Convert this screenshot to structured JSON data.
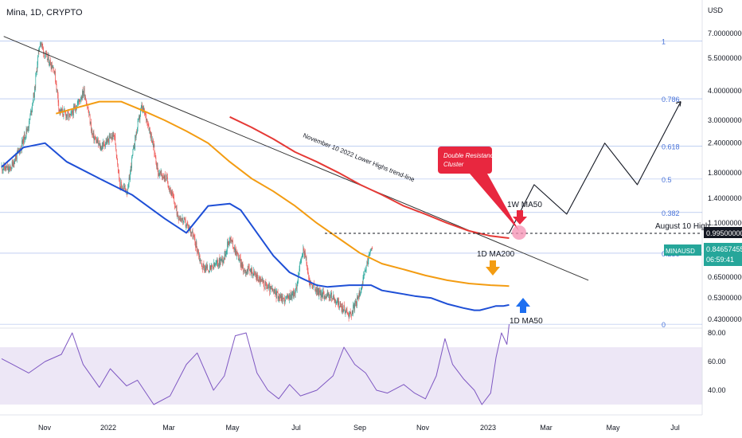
{
  "header": {
    "title": "Mina, 1D, CRYPTO"
  },
  "price_axis": {
    "currency": "USD",
    "ticks": [
      "7.00000000",
      "5.50000000",
      "4.00000000",
      "3.00000000",
      "2.40000000",
      "1.80000000",
      "1.40000000",
      "1.10000000",
      "0.65000000",
      "0.53000000",
      "0.43000000"
    ],
    "ticks_num": [
      7.0,
      5.5,
      4.0,
      3.0,
      2.4,
      1.8,
      1.4,
      1.1,
      0.65,
      0.53,
      0.43
    ]
  },
  "rsi_axis": {
    "ticks": [
      "80.00",
      "60.00",
      "40.00"
    ],
    "ticks_num": [
      80,
      60,
      40
    ]
  },
  "time_axis": {
    "labels": [
      "Nov",
      "2022",
      "Mar",
      "May",
      "Jul",
      "Sep",
      "Nov",
      "2023",
      "Mar",
      "May",
      "Jul"
    ]
  },
  "price_tags": {
    "level_value": "0.99500000",
    "symbol": "MINAUSD",
    "last_price": "0.84657455",
    "countdown": "06:59:41"
  },
  "annotations": {
    "trendline": "November 10 2022 Lower Highs trend-line",
    "callout_line1": "Double Resistance",
    "callout_line2": "Cluster",
    "ma50_1w": "1W MA50",
    "ma200_1d": "1D MA200",
    "ma50_1d": "1D MA50",
    "aug_high": "August 10 High"
  },
  "fib_labels": [
    "1",
    "0.786",
    "0.618",
    "0.5",
    "0.382",
    "0.236",
    "0"
  ],
  "colors": {
    "fib": "#4a74d9",
    "ma50_1d": "#1e4fd6",
    "ma200_1d": "#f39c12",
    "ma50_1w": "#e53935",
    "trend": "#333333",
    "rsi": "#7e57c2",
    "rsi_band": "#ede7f6",
    "candle_up": "#26a69a",
    "candle_down": "#ef5350",
    "last_tag": "#26a69a",
    "level_tag": "#131722",
    "callout": "#e8273f"
  },
  "chart_data": {
    "type": "candlestick",
    "symbol": "MINAUSD",
    "timeframe": "1D",
    "y_scale": "log",
    "ylim": [
      0.4,
      8.5
    ],
    "rsi_ylim": [
      25,
      85
    ],
    "fib_levels": [
      {
        "label": "1",
        "price": 6.5
      },
      {
        "label": "0.786",
        "price": 3.7
      },
      {
        "label": "0.618",
        "price": 2.33
      },
      {
        "label": "0.5",
        "price": 1.69
      },
      {
        "label": "0.382",
        "price": 1.22
      },
      {
        "label": "0.236",
        "price": 0.82
      },
      {
        "label": "0",
        "price": 0.41
      }
    ],
    "last_price": 0.84657455,
    "august_10_high": 0.995,
    "ma50_1d": [
      [
        0,
        1.9
      ],
      [
        20,
        2.3
      ],
      [
        40,
        2.4
      ],
      [
        60,
        2.0
      ],
      [
        90,
        1.7
      ],
      [
        120,
        1.45
      ],
      [
        150,
        1.15
      ],
      [
        170,
        1.0
      ],
      [
        190,
        1.3
      ],
      [
        210,
        1.33
      ],
      [
        220,
        1.25
      ],
      [
        235,
        1.0
      ],
      [
        250,
        0.8
      ],
      [
        265,
        0.68
      ],
      [
        280,
        0.63
      ],
      [
        290,
        0.6
      ],
      [
        300,
        0.59
      ],
      [
        320,
        0.6
      ],
      [
        340,
        0.6
      ],
      [
        350,
        0.57
      ],
      [
        360,
        0.56
      ],
      [
        370,
        0.55
      ],
      [
        380,
        0.54
      ],
      [
        395,
        0.53
      ],
      [
        410,
        0.5
      ],
      [
        425,
        0.48
      ],
      [
        435,
        0.47
      ],
      [
        440,
        0.47
      ],
      [
        448,
        0.48
      ],
      [
        455,
        0.49
      ],
      [
        462,
        0.49
      ],
      [
        467,
        0.495
      ]
    ],
    "ma200_1d": [
      [
        50,
        3.2
      ],
      [
        70,
        3.4
      ],
      [
        90,
        3.6
      ],
      [
        110,
        3.6
      ],
      [
        130,
        3.3
      ],
      [
        150,
        3.0
      ],
      [
        170,
        2.7
      ],
      [
        190,
        2.4
      ],
      [
        210,
        2.0
      ],
      [
        230,
        1.7
      ],
      [
        250,
        1.5
      ],
      [
        270,
        1.3
      ],
      [
        290,
        1.1
      ],
      [
        310,
        0.95
      ],
      [
        330,
        0.82
      ],
      [
        350,
        0.74
      ],
      [
        370,
        0.7
      ],
      [
        390,
        0.66
      ],
      [
        410,
        0.63
      ],
      [
        430,
        0.61
      ],
      [
        450,
        0.6
      ],
      [
        467,
        0.595
      ]
    ],
    "ma50_1w": [
      [
        210,
        3.1
      ],
      [
        230,
        2.8
      ],
      [
        250,
        2.5
      ],
      [
        270,
        2.2
      ],
      [
        290,
        2.0
      ],
      [
        310,
        1.8
      ],
      [
        330,
        1.6
      ],
      [
        350,
        1.45
      ],
      [
        370,
        1.3
      ],
      [
        390,
        1.2
      ],
      [
        410,
        1.1
      ],
      [
        430,
        1.02
      ],
      [
        450,
        0.97
      ],
      [
        467,
        0.95
      ]
    ],
    "trendline": [
      [
        2,
        6.8
      ],
      [
        540,
        0.63
      ]
    ],
    "projection": [
      [
        467,
        0.995
      ],
      [
        490,
        1.6
      ],
      [
        520,
        1.2
      ],
      [
        555,
        2.4
      ],
      [
        585,
        1.6
      ],
      [
        625,
        3.6
      ]
    ],
    "rsi": [
      [
        0,
        62
      ],
      [
        10,
        58
      ],
      [
        25,
        52
      ],
      [
        40,
        60
      ],
      [
        55,
        65
      ],
      [
        65,
        80
      ],
      [
        75,
        58
      ],
      [
        90,
        42
      ],
      [
        100,
        55
      ],
      [
        115,
        43
      ],
      [
        125,
        47
      ],
      [
        140,
        30
      ],
      [
        155,
        36
      ],
      [
        170,
        58
      ],
      [
        180,
        66
      ],
      [
        195,
        40
      ],
      [
        205,
        50
      ],
      [
        215,
        78
      ],
      [
        225,
        80
      ],
      [
        235,
        52
      ],
      [
        245,
        40
      ],
      [
        255,
        34
      ],
      [
        265,
        44
      ],
      [
        275,
        36
      ],
      [
        290,
        40
      ],
      [
        305,
        50
      ],
      [
        315,
        70
      ],
      [
        325,
        58
      ],
      [
        335,
        52
      ],
      [
        345,
        40
      ],
      [
        355,
        38
      ],
      [
        370,
        44
      ],
      [
        380,
        38
      ],
      [
        390,
        34
      ],
      [
        400,
        50
      ],
      [
        408,
        76
      ],
      [
        415,
        58
      ],
      [
        425,
        48
      ],
      [
        435,
        40
      ],
      [
        442,
        30
      ],
      [
        450,
        38
      ],
      [
        455,
        63
      ],
      [
        460,
        80
      ],
      [
        465,
        72
      ],
      [
        467,
        86
      ]
    ]
  }
}
